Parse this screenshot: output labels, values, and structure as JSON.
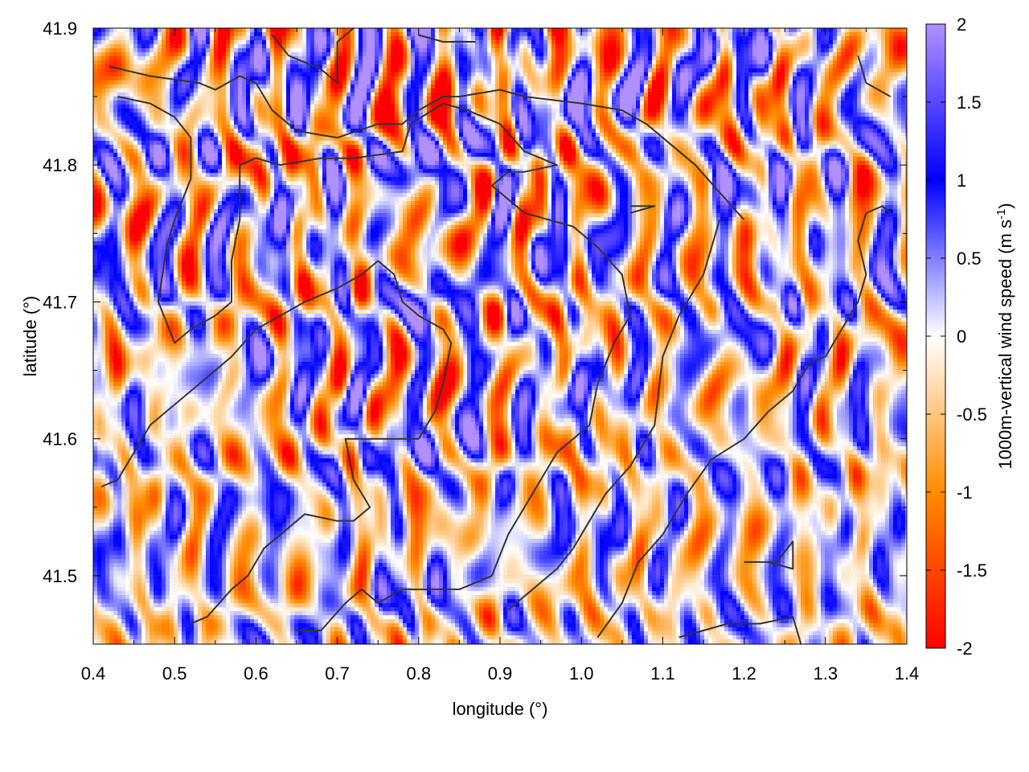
{
  "chart_data": {
    "type": "heatmap",
    "xlabel": "longitude (°)",
    "ylabel": "latitude (°)",
    "colorbar_label": "1000m-vertical wind speed (m s",
    "colorbar_label_sup": "-1",
    "colorbar_label_end": ")",
    "xlim": [
      0.4,
      1.4
    ],
    "ylim": [
      41.45,
      41.9
    ],
    "x_ticks": [
      0.4,
      0.5,
      0.6,
      0.7,
      0.8,
      0.9,
      1.0,
      1.1,
      1.2,
      1.3,
      1.4
    ],
    "x_tick_labels": [
      "0.4",
      "0.5",
      "0.6",
      "0.7",
      "0.8",
      "0.9",
      "1.0",
      "1.1",
      "1.2",
      "1.3",
      "1.4"
    ],
    "y_ticks": [
      41.5,
      41.6,
      41.7,
      41.8,
      41.9
    ],
    "y_tick_labels": [
      "41.5",
      "41.6",
      "41.7",
      "41.8",
      "41.9"
    ],
    "color_range": [
      -2,
      2
    ],
    "colorbar_ticks": [
      2,
      1.5,
      1,
      0.5,
      0,
      -0.5,
      -1,
      -1.5,
      -2
    ],
    "colorbar_tick_labels": [
      "2",
      "1.5",
      "1",
      "0.5",
      "0",
      "-0.5",
      "-1",
      "-1.5",
      "-2"
    ],
    "colormap": [
      "#ff0000",
      "#ff8c00",
      "#ffffff",
      "#0000ff",
      "#b090ff"
    ],
    "grid": true,
    "contours": [
      [
        [
          0.42,
          41.872
        ],
        [
          0.47,
          41.865
        ],
        [
          0.53,
          41.86
        ],
        [
          0.55,
          41.855
        ],
        [
          0.58,
          41.865
        ],
        [
          0.6,
          41.86
        ],
        [
          0.62,
          41.84
        ],
        [
          0.65,
          41.825
        ],
        [
          0.7,
          41.82
        ],
        [
          0.75,
          41.83
        ],
        [
          0.78,
          41.83
        ],
        [
          0.8,
          41.84
        ],
        [
          0.83,
          41.85
        ],
        [
          0.85,
          41.85
        ],
        [
          0.9,
          41.855
        ],
        [
          0.93,
          41.85
        ],
        [
          1.0,
          41.845
        ],
        [
          1.05,
          41.84
        ],
        [
          1.08,
          41.83
        ],
        [
          1.1,
          41.82
        ],
        [
          1.14,
          41.8
        ],
        [
          1.17,
          41.78
        ],
        [
          1.2,
          41.76
        ]
      ],
      [
        [
          0.43,
          41.85
        ],
        [
          0.47,
          41.845
        ],
        [
          0.5,
          41.835
        ],
        [
          0.52,
          41.82
        ],
        [
          0.52,
          41.79
        ],
        [
          0.5,
          41.76
        ],
        [
          0.49,
          41.74
        ],
        [
          0.48,
          41.7
        ],
        [
          0.5,
          41.67
        ],
        [
          0.52,
          41.68
        ],
        [
          0.55,
          41.69
        ],
        [
          0.57,
          41.7
        ],
        [
          0.57,
          41.73
        ],
        [
          0.58,
          41.76
        ],
        [
          0.58,
          41.8
        ],
        [
          0.6,
          41.805
        ],
        [
          0.63,
          41.8
        ],
        [
          0.68,
          41.805
        ],
        [
          0.72,
          41.805
        ],
        [
          0.78,
          41.81
        ],
        [
          0.79,
          41.83
        ],
        [
          0.83,
          41.845
        ],
        [
          0.86,
          41.84
        ],
        [
          0.9,
          41.83
        ],
        [
          0.93,
          41.81
        ],
        [
          0.97,
          41.8
        ],
        [
          0.93,
          41.795
        ],
        [
          0.91,
          41.795
        ],
        [
          0.89,
          41.785
        ],
        [
          0.91,
          41.775
        ],
        [
          0.93,
          41.765
        ],
        [
          0.96,
          41.76
        ],
        [
          0.99,
          41.755
        ],
        [
          1.02,
          41.74
        ],
        [
          1.05,
          41.72
        ],
        [
          1.06,
          41.69
        ],
        [
          1.04,
          41.67
        ],
        [
          1.02,
          41.64
        ],
        [
          1.01,
          41.61
        ],
        [
          0.97,
          41.59
        ],
        [
          0.94,
          41.56
        ],
        [
          0.91,
          41.53
        ],
        [
          0.89,
          41.5
        ],
        [
          0.85,
          41.49
        ],
        [
          0.82,
          41.49
        ],
        [
          0.78,
          41.49
        ],
        [
          0.75,
          41.48
        ],
        [
          0.73,
          41.49
        ],
        [
          0.71,
          41.48
        ],
        [
          0.68,
          41.46
        ],
        [
          0.65,
          41.46
        ]
      ],
      [
        [
          0.41,
          41.565
        ],
        [
          0.43,
          41.57
        ],
        [
          0.45,
          41.59
        ],
        [
          0.47,
          41.61
        ],
        [
          0.5,
          41.625
        ],
        [
          0.53,
          41.64
        ],
        [
          0.57,
          41.66
        ],
        [
          0.6,
          41.68
        ],
        [
          0.63,
          41.69
        ],
        [
          0.66,
          41.7
        ],
        [
          0.7,
          41.71
        ],
        [
          0.73,
          41.72
        ],
        [
          0.75,
          41.73
        ],
        [
          0.77,
          41.72
        ],
        [
          0.78,
          41.7
        ],
        [
          0.8,
          41.69
        ],
        [
          0.83,
          41.68
        ],
        [
          0.84,
          41.67
        ],
        [
          0.83,
          41.64
        ],
        [
          0.82,
          41.62
        ],
        [
          0.8,
          41.6
        ],
        [
          0.77,
          41.6
        ],
        [
          0.74,
          41.6
        ],
        [
          0.71,
          41.6
        ],
        [
          0.72,
          41.57
        ],
        [
          0.74,
          41.55
        ],
        [
          0.72,
          41.54
        ],
        [
          0.7,
          41.54
        ],
        [
          0.66,
          41.545
        ],
        [
          0.64,
          41.535
        ],
        [
          0.61,
          41.52
        ],
        [
          0.59,
          41.5
        ],
        [
          0.57,
          41.49
        ],
        [
          0.54,
          41.47
        ],
        [
          0.52,
          41.465
        ]
      ],
      [
        [
          1.17,
          41.76
        ],
        [
          1.15,
          41.72
        ],
        [
          1.12,
          41.69
        ],
        [
          1.1,
          41.66
        ],
        [
          1.09,
          41.61
        ],
        [
          1.06,
          41.58
        ],
        [
          1.03,
          41.56
        ],
        [
          1.01,
          41.54
        ],
        [
          0.99,
          41.52
        ],
        [
          0.97,
          41.505
        ],
        [
          0.95,
          41.495
        ],
        [
          0.93,
          41.485
        ],
        [
          0.91,
          41.475
        ]
      ],
      [
        [
          1.06,
          41.765
        ],
        [
          1.09,
          41.77
        ],
        [
          1.06,
          41.77
        ]
      ],
      [
        [
          1.02,
          41.455
        ],
        [
          1.05,
          41.48
        ],
        [
          1.07,
          41.51
        ],
        [
          1.1,
          41.53
        ],
        [
          1.13,
          41.56
        ],
        [
          1.16,
          41.585
        ],
        [
          1.2,
          41.6
        ],
        [
          1.23,
          41.62
        ],
        [
          1.26,
          41.635
        ],
        [
          1.28,
          41.655
        ],
        [
          1.3,
          41.66
        ],
        [
          1.32,
          41.68
        ],
        [
          1.34,
          41.7
        ],
        [
          1.35,
          41.72
        ],
        [
          1.34,
          41.745
        ],
        [
          1.35,
          41.765
        ],
        [
          1.37,
          41.77
        ],
        [
          1.38,
          41.765
        ]
      ],
      [
        [
          1.2,
          41.51
        ],
        [
          1.24,
          41.51
        ],
        [
          1.26,
          41.525
        ],
        [
          1.26,
          41.505
        ],
        [
          1.23,
          41.51
        ]
      ],
      [
        [
          1.12,
          41.455
        ],
        [
          1.15,
          41.46
        ],
        [
          1.18,
          41.465
        ],
        [
          1.22,
          41.465
        ],
        [
          1.26,
          41.47
        ],
        [
          1.27,
          41.45
        ]
      ],
      [
        [
          1.34,
          41.88
        ],
        [
          1.35,
          41.86
        ],
        [
          1.38,
          41.85
        ]
      ],
      [
        [
          0.62,
          41.895
        ],
        [
          0.64,
          41.88
        ],
        [
          0.68,
          41.87
        ],
        [
          0.7,
          41.86
        ],
        [
          0.7,
          41.89
        ],
        [
          0.72,
          41.9
        ]
      ],
      [
        [
          0.8,
          41.895
        ],
        [
          0.83,
          41.89
        ],
        [
          0.87,
          41.89
        ]
      ]
    ]
  }
}
